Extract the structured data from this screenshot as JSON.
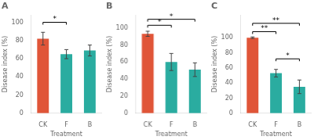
{
  "chart_data": [
    {
      "type": "bar",
      "title": "A",
      "categories": [
        "CK",
        "F",
        "B"
      ],
      "values": [
        82,
        65,
        69
      ],
      "errors": [
        7,
        5,
        6
      ],
      "colors": [
        "#e05538",
        "#2aaca0",
        "#2aaca0"
      ],
      "xlabel": "Treatment",
      "ylabel": "Disease index (%)",
      "ylim": [
        0,
        108
      ],
      "yticks": [
        0,
        20,
        40,
        60,
        80,
        100
      ],
      "grid": false,
      "annotations": [
        {
          "x1": "CK",
          "x2": "F",
          "y": 100,
          "label": "*"
        }
      ]
    },
    {
      "type": "bar",
      "title": "B",
      "categories": [
        "CK",
        "F",
        "B"
      ],
      "values": [
        93,
        60,
        51
      ],
      "errors": [
        3,
        10,
        8
      ],
      "colors": [
        "#e05538",
        "#2aaca0",
        "#2aaca0"
      ],
      "xlabel": "Treatment",
      "ylabel": "Disease index (%)",
      "ylim": [
        0,
        115
      ],
      "yticks": [
        0,
        20,
        40,
        60,
        80,
        100
      ],
      "grid": false,
      "annotations": [
        {
          "x1": "CK",
          "x2": "F",
          "y": 103,
          "label": "*"
        },
        {
          "x1": "CK",
          "x2": "B",
          "y": 110,
          "label": "*"
        }
      ]
    },
    {
      "type": "bar",
      "title": "C",
      "categories": [
        "CK",
        "F",
        "B"
      ],
      "values": [
        100,
        53,
        35
      ],
      "errors": [
        1,
        5,
        9
      ],
      "colors": [
        "#e05538",
        "#2aaca0",
        "#2aaca0"
      ],
      "xlabel": "Treatment",
      "ylabel": "Disease index (%)",
      "ylim": [
        0,
        130
      ],
      "yticks": [
        0,
        20,
        40,
        60,
        80,
        100
      ],
      "grid": false,
      "annotations": [
        {
          "x1": "F",
          "x2": "B",
          "y": 72,
          "label": "*"
        },
        {
          "x1": "CK",
          "x2": "F",
          "y": 108,
          "label": "**"
        },
        {
          "x1": "CK",
          "x2": "B",
          "y": 119,
          "label": "**"
        }
      ]
    }
  ]
}
